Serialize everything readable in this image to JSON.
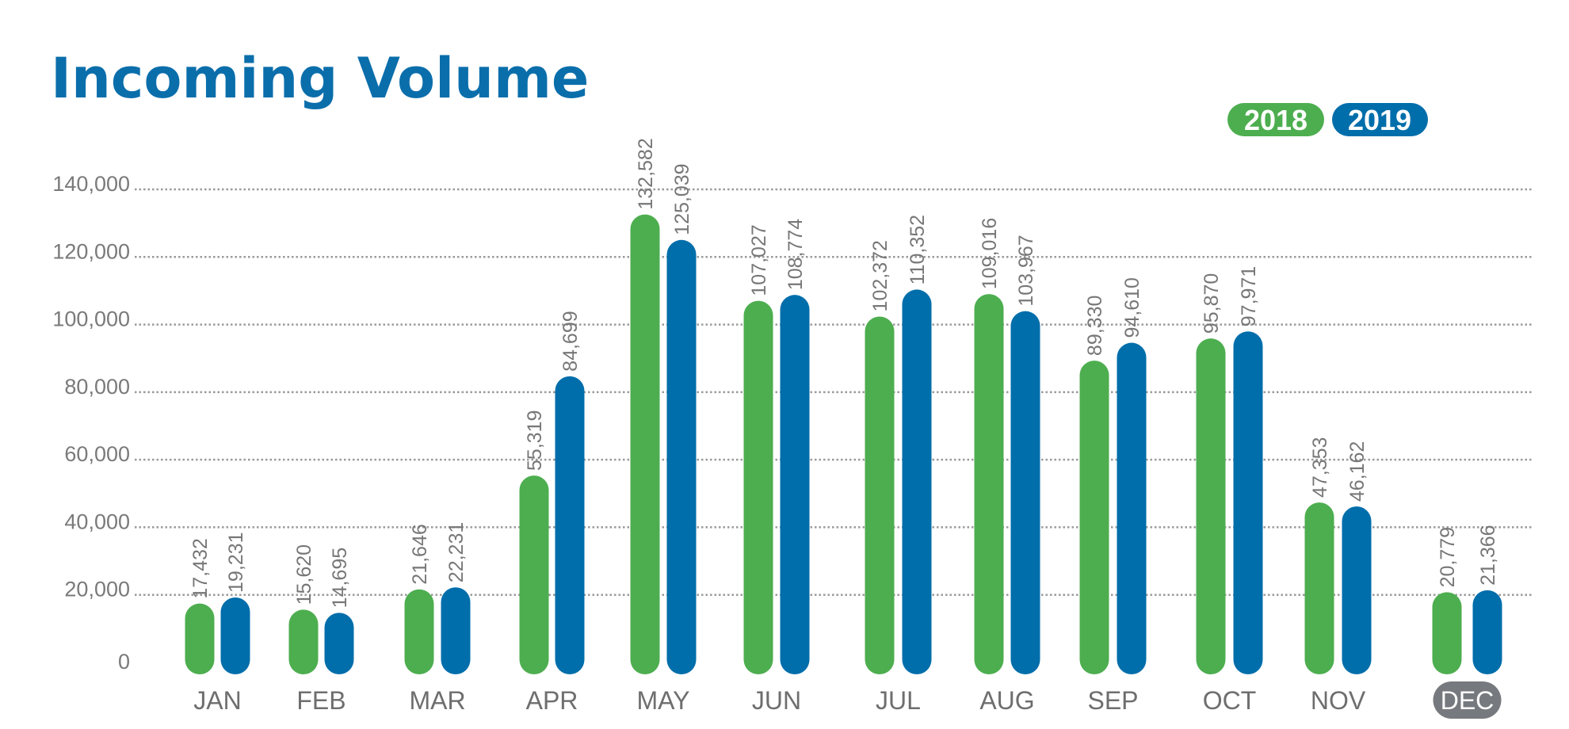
{
  "chart_data": {
    "type": "bar",
    "title": "Incoming Volume",
    "categories": [
      "JAN",
      "FEB",
      "MAR",
      "APR",
      "MAY",
      "JUN",
      "JUL",
      "AUG",
      "SEP",
      "OCT",
      "NOV",
      "DEC"
    ],
    "highlighted_category": "DEC",
    "series": [
      {
        "name": "2018",
        "color": "#4dae4f",
        "values": [
          17432,
          15620,
          21646,
          55319,
          132582,
          107027,
          102372,
          109016,
          89330,
          95870,
          47353,
          20779
        ]
      },
      {
        "name": "2019",
        "color": "#006eab",
        "values": [
          19231,
          14695,
          22231,
          84699,
          125039,
          108774,
          110352,
          103967,
          94610,
          97971,
          46162,
          21366
        ]
      }
    ],
    "data_labels": [
      [
        "17,432",
        "15,620",
        "21,646",
        "55,319",
        "132,582",
        "107,027",
        "102,372",
        "109,016",
        "89,330",
        "95,870",
        "47,353",
        "20,779"
      ],
      [
        "19,231",
        "14,695",
        "22,231",
        "84,699",
        "125,039",
        "108,774",
        "110,352",
        "103,967",
        "94,610",
        "97,971",
        "46,162",
        "21,366"
      ]
    ],
    "yticks": [
      "0",
      "20,000",
      "40,000",
      "60,000",
      "80,000",
      "100,000",
      "120,000",
      "140,000"
    ],
    "ylim": [
      0,
      140000
    ],
    "grid": "dotted horizontal",
    "legend_position": "top-right",
    "xlabel": "",
    "ylabel": ""
  }
}
